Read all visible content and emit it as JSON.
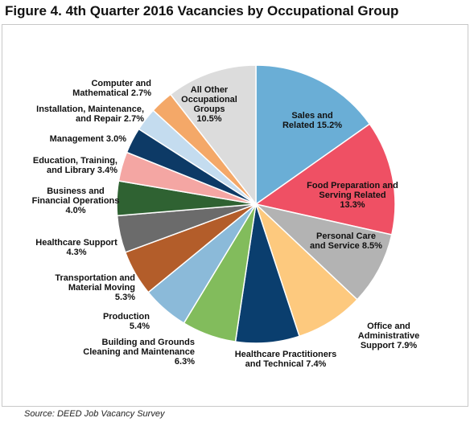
{
  "chart_data": {
    "type": "pie",
    "title": "Figure 4. 4th Quarter 2016 Vacancies by Occupational Group",
    "source": "Source: DEED Job Vacancy Survey",
    "categories": [
      "Sales and\nRelated",
      "Food Preparation and\nServing Related",
      "Personal Care\nand Service",
      "Office and Administrative\nSupport",
      "Healthcare Practitioners\nand Technical",
      "Building and Grounds\nCleaning and Maintenance",
      "Production",
      "Transportation and\nMaterial Moving",
      "Healthcare Support",
      "Business and\nFinancial Operations",
      "Education, Training,\nand Library",
      "Management",
      "Installation, Maintenance,\nand Repair",
      "Computer and\nMathematical",
      "All Other\nOccupational\nGroups"
    ],
    "values": [
      15.2,
      13.3,
      8.5,
      7.9,
      7.4,
      6.3,
      5.4,
      5.3,
      4.3,
      4.0,
      3.4,
      3.0,
      2.7,
      2.7,
      10.5
    ],
    "value_labels": [
      "15.2%",
      "13.3%",
      "8.5%",
      "7.9%",
      "7.4%",
      "6.3%",
      "5.4%",
      "5.3%",
      "4.3%",
      "4.0%",
      "3.4%",
      "3.0%",
      "2.7%",
      "2.7%",
      "10.5%"
    ],
    "colors": [
      "#6aaed6",
      "#ef5064",
      "#b3b3b3",
      "#fdc97e",
      "#0a3e6e",
      "#82bc5c",
      "#8bbad9",
      "#b35d2a",
      "#6b6b6b",
      "#2f6232",
      "#f4a6a3",
      "#0d3a66",
      "#c4dcef",
      "#f4a868",
      "#dcdcdc"
    ]
  }
}
